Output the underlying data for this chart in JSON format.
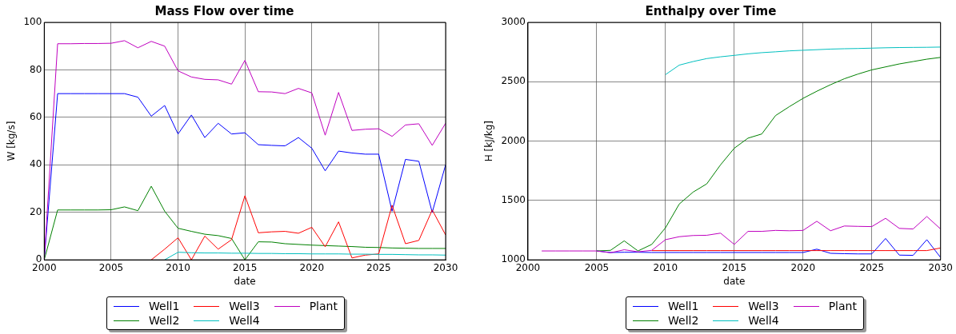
{
  "chart_data": [
    {
      "type": "line",
      "title": "Mass Flow over time",
      "xlabel": "date",
      "ylabel": "W [kg/s]",
      "x": [
        2000,
        2001,
        2002,
        2003,
        2004,
        2005,
        2006,
        2007,
        2008,
        2009,
        2010,
        2011,
        2012,
        2013,
        2014,
        2015,
        2016,
        2017,
        2018,
        2019,
        2020,
        2021,
        2022,
        2023,
        2024,
        2025,
        2026,
        2027,
        2028,
        2029,
        2030
      ],
      "xlim": [
        2000,
        2030
      ],
      "xticks": [
        2000,
        2005,
        2010,
        2015,
        2020,
        2025,
        2030
      ],
      "ylim": [
        0,
        100
      ],
      "yticks": [
        0,
        20,
        40,
        60,
        80,
        100
      ],
      "grid": true,
      "legend": "bottom",
      "line_style": "solid",
      "series": [
        {
          "name": "Well1",
          "color": "#0000ff",
          "values": [
            0,
            70,
            70,
            70,
            70,
            70,
            70,
            68.5,
            60.5,
            65,
            53,
            61,
            51.5,
            57.5,
            53,
            53.5,
            48.5,
            48.2,
            48,
            51.5,
            47,
            37.5,
            45.8,
            45,
            44.5,
            44.5,
            20.5,
            42.3,
            41.5,
            20,
            40
          ]
        },
        {
          "name": "Well2",
          "color": "#008000",
          "values": [
            0,
            21,
            21,
            21,
            21,
            21.1,
            22.3,
            20.7,
            31,
            20.5,
            13.3,
            12,
            10.8,
            10.2,
            9,
            0,
            7.6,
            7.5,
            6.8,
            6.5,
            6.2,
            6,
            5.8,
            5.6,
            5.3,
            5.2,
            5,
            4.9,
            4.8,
            4.8,
            4.8
          ]
        },
        {
          "name": "Well3",
          "color": "#ff0000",
          "values": [
            null,
            null,
            null,
            null,
            null,
            null,
            null,
            null,
            0,
            4.5,
            9.3,
            0,
            10,
            4.5,
            8.5,
            27,
            11.4,
            11.8,
            12,
            11.2,
            13.7,
            5.5,
            16,
            0.8,
            2,
            2.5,
            23,
            6.8,
            8.2,
            21,
            10.5
          ]
        },
        {
          "name": "Well4",
          "color": "#00bfbf",
          "values": [
            null,
            null,
            null,
            null,
            null,
            null,
            null,
            null,
            null,
            0,
            3.2,
            3,
            2.9,
            2.9,
            2.8,
            2.8,
            2.7,
            2.7,
            2.6,
            2.6,
            2.5,
            2.5,
            2.5,
            2.4,
            2.4,
            2.3,
            2.3,
            2.2,
            2.1,
            2.1,
            2
          ]
        },
        {
          "name": "Plant",
          "color": "#bf00bf",
          "values": [
            0,
            91,
            91,
            91.1,
            91.1,
            91.2,
            92.3,
            89.3,
            92,
            90,
            79.6,
            77,
            76,
            75.8,
            74,
            84,
            70.8,
            70.7,
            70,
            72.2,
            70.3,
            52.5,
            70.5,
            54.5,
            55,
            55.2,
            52,
            56.8,
            57.3,
            48.2,
            57.5
          ]
        }
      ]
    },
    {
      "type": "line",
      "title": "Enthalpy over Time",
      "xlabel": "date",
      "ylabel": "H [kJ/kg]",
      "x": [
        2001,
        2002,
        2003,
        2004,
        2005,
        2006,
        2007,
        2008,
        2009,
        2010,
        2011,
        2012,
        2013,
        2014,
        2015,
        2016,
        2017,
        2018,
        2019,
        2020,
        2021,
        2022,
        2023,
        2024,
        2025,
        2026,
        2027,
        2028,
        2029,
        2030
      ],
      "xlim": [
        2000,
        2030
      ],
      "xticks": [
        2000,
        2005,
        2010,
        2015,
        2020,
        2025,
        2030
      ],
      "ylim": [
        1000,
        3000
      ],
      "yticks": [
        1000,
        1500,
        2000,
        2500,
        3000
      ],
      "grid": true,
      "legend": "bottom",
      "line_style": "solid",
      "series": [
        {
          "name": "Well1",
          "color": "#0000ff",
          "values": [
            null,
            null,
            null,
            null,
            1075,
            1062,
            1064,
            1064,
            1062,
            1062,
            1062,
            1062,
            1062,
            1062,
            1062,
            1062,
            1062,
            1062,
            1062,
            1062,
            1090,
            1055,
            1052,
            1050,
            1050,
            1180,
            1040,
            1038,
            1170,
            1020
          ]
        },
        {
          "name": "Well2",
          "color": "#008000",
          "values": [
            null,
            null,
            null,
            null,
            1075,
            1080,
            1160,
            1075,
            1130,
            1270,
            1470,
            1570,
            1640,
            1800,
            1940,
            2025,
            2060,
            2215,
            2290,
            2360,
            2420,
            2475,
            2525,
            2565,
            2600,
            2625,
            2650,
            2670,
            2690,
            2705
          ]
        },
        {
          "name": "Well3",
          "color": "#ff0000",
          "values": [
            null,
            null,
            null,
            null,
            null,
            null,
            null,
            null,
            1078,
            1078,
            1078,
            1078,
            1078,
            1078,
            1078,
            1078,
            1078,
            1078,
            1078,
            1078,
            1078,
            1078,
            1078,
            1078,
            1078,
            1078,
            1078,
            1078,
            1078,
            1100
          ]
        },
        {
          "name": "Well4",
          "color": "#00bfbf",
          "values": [
            null,
            null,
            null,
            null,
            null,
            null,
            null,
            null,
            null,
            2560,
            2640,
            2670,
            2695,
            2710,
            2722,
            2735,
            2745,
            2752,
            2760,
            2765,
            2770,
            2775,
            2778,
            2780,
            2783,
            2786,
            2788,
            2789,
            2790,
            2792
          ]
        },
        {
          "name": "Plant",
          "color": "#bf00bf",
          "values": [
            1075,
            1075,
            1075,
            1075,
            1075,
            1060,
            1085,
            1068,
            1080,
            1170,
            1195,
            1205,
            1207,
            1225,
            1130,
            1240,
            1240,
            1248,
            1245,
            1248,
            1325,
            1245,
            1285,
            1282,
            1280,
            1350,
            1265,
            1260,
            1365,
            1260
          ]
        }
      ]
    }
  ]
}
